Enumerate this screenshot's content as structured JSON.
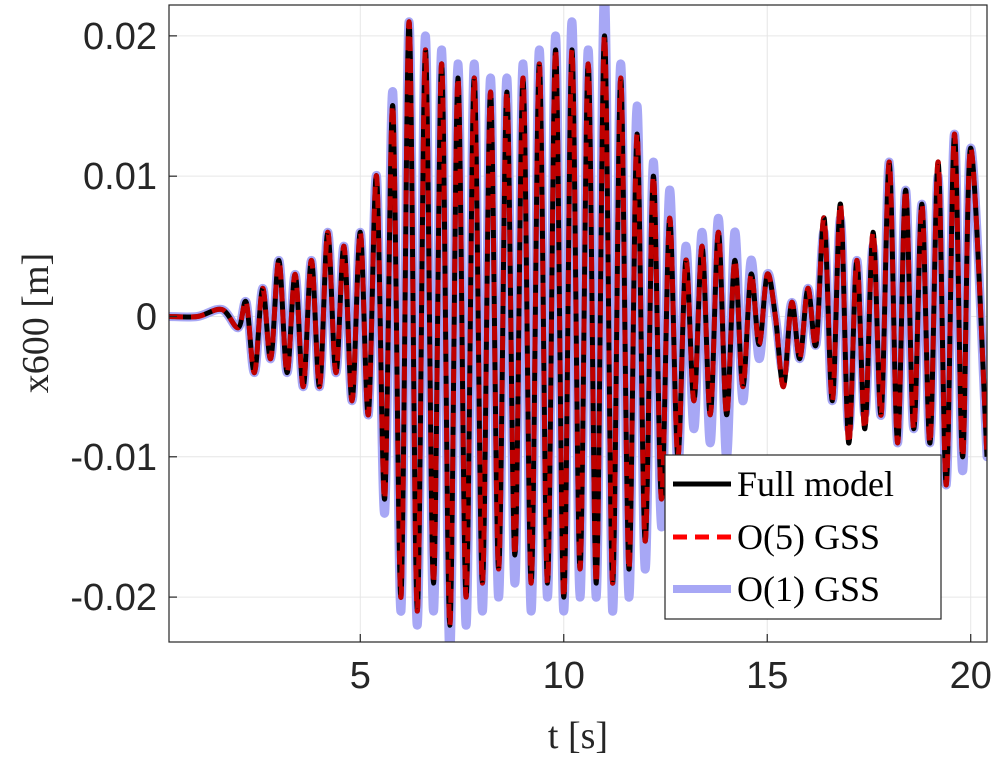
{
  "chart_data": {
    "type": "line",
    "xlabel": "t [s]",
    "ylabel": "x600 [m]",
    "xlim": [
      0.3,
      20.4
    ],
    "ylim": [
      -0.0232,
      0.0222
    ],
    "xticks": [
      {
        "value": 5,
        "label": "5"
      },
      {
        "value": 10,
        "label": "10"
      },
      {
        "value": 15,
        "label": "15"
      },
      {
        "value": 20,
        "label": "20"
      }
    ],
    "yticks": [
      {
        "value": 0.02,
        "label": "0.02"
      },
      {
        "value": 0.01,
        "label": "0.01"
      },
      {
        "value": 0,
        "label": "0"
      },
      {
        "value": -0.01,
        "label": "-0.01"
      },
      {
        "value": -0.02,
        "label": "-0.02"
      }
    ],
    "grid": true,
    "legend_position": "bottom-right",
    "series": [
      {
        "name": "O(1) GSS",
        "color": "#a7a7f5",
        "style": "solid-thick",
        "x": [
          0.3,
          1.0,
          1.6,
          2.0,
          2.2,
          2.4,
          2.6,
          2.8,
          3.0,
          3.2,
          3.4,
          3.6,
          3.8,
          4.0,
          4.2,
          4.4,
          4.6,
          4.8,
          5.0,
          5.2,
          5.4,
          5.6,
          5.8,
          6.0,
          6.2,
          6.4,
          6.6,
          6.8,
          7.0,
          7.2,
          7.4,
          7.6,
          7.8,
          8.0,
          8.2,
          8.4,
          8.6,
          8.8,
          9.0,
          9.2,
          9.4,
          9.6,
          9.8,
          10.0,
          10.2,
          10.4,
          10.6,
          10.8,
          11.0,
          11.2,
          11.4,
          11.6,
          11.8,
          12.0,
          12.2,
          12.4,
          12.6,
          12.8,
          13.0,
          13.2,
          13.4,
          13.6,
          13.8,
          14.0,
          14.2,
          14.4,
          14.6,
          14.8,
          15.0,
          15.2,
          15.4,
          15.6,
          15.8,
          16.0,
          16.2,
          16.4,
          16.6,
          16.8,
          17.0,
          17.2,
          17.4,
          17.6,
          17.8,
          18.0,
          18.2,
          18.4,
          18.6,
          18.8,
          19.0,
          19.2,
          19.4,
          19.6,
          19.8,
          20.0,
          20.4
        ],
        "y": [
          0,
          0,
          0.0005,
          -0.0008,
          0.001,
          -0.004,
          0.002,
          -0.003,
          0.004,
          -0.004,
          0.003,
          -0.005,
          0.004,
          -0.005,
          0.006,
          -0.004,
          0.005,
          -0.006,
          0.006,
          -0.007,
          0.01,
          -0.014,
          0.016,
          -0.021,
          0.021,
          -0.022,
          0.02,
          -0.021,
          0.019,
          -0.024,
          0.018,
          -0.022,
          0.018,
          -0.021,
          0.017,
          -0.02,
          0.017,
          -0.019,
          0.018,
          -0.021,
          0.019,
          -0.02,
          0.02,
          -0.021,
          0.021,
          -0.02,
          0.019,
          -0.02,
          0.023,
          -0.021,
          0.018,
          -0.02,
          0.015,
          -0.018,
          0.011,
          -0.015,
          0.009,
          -0.011,
          0.005,
          -0.008,
          0.006,
          -0.009,
          0.007,
          -0.01,
          0.006,
          -0.006,
          0.004,
          -0.003,
          0.003,
          0,
          -0.004,
          0.001,
          -0.003,
          0.002,
          -0.002,
          0.006,
          -0.006,
          0.007,
          -0.008,
          0.004,
          -0.007,
          0.005,
          -0.007,
          0.011,
          -0.009,
          0.009,
          -0.008,
          0.008,
          -0.009,
          0.01,
          -0.012,
          0.013,
          -0.011,
          0.012,
          -0.01
        ]
      },
      {
        "name": "Full model",
        "color": "#000000",
        "style": "solid",
        "x": [
          0.3,
          1.0,
          1.6,
          2.0,
          2.2,
          2.4,
          2.6,
          2.8,
          3.0,
          3.2,
          3.4,
          3.6,
          3.8,
          4.0,
          4.2,
          4.4,
          4.6,
          4.8,
          5.0,
          5.2,
          5.4,
          5.6,
          5.8,
          6.0,
          6.2,
          6.4,
          6.6,
          6.8,
          7.0,
          7.2,
          7.4,
          7.6,
          7.8,
          8.0,
          8.2,
          8.4,
          8.6,
          8.8,
          9.0,
          9.2,
          9.4,
          9.6,
          9.8,
          10.0,
          10.2,
          10.4,
          10.6,
          10.8,
          11.0,
          11.2,
          11.4,
          11.6,
          11.8,
          12.0,
          12.2,
          12.4,
          12.6,
          12.8,
          13.0,
          13.2,
          13.4,
          13.6,
          13.8,
          14.0,
          14.2,
          14.4,
          14.6,
          14.8,
          15.0,
          15.2,
          15.4,
          15.6,
          15.8,
          16.0,
          16.2,
          16.4,
          16.6,
          16.8,
          17.0,
          17.2,
          17.4,
          17.6,
          17.8,
          18.0,
          18.2,
          18.4,
          18.6,
          18.8,
          19.0,
          19.2,
          19.4,
          19.6,
          19.8,
          20.0,
          20.4
        ],
        "y": [
          0,
          0,
          0.0005,
          -0.0008,
          0.001,
          -0.004,
          0.002,
          -0.003,
          0.004,
          -0.004,
          0.003,
          -0.005,
          0.004,
          -0.005,
          0.006,
          -0.004,
          0.005,
          -0.006,
          0.006,
          -0.007,
          0.01,
          -0.013,
          0.015,
          -0.02,
          0.021,
          -0.021,
          0.019,
          -0.019,
          0.018,
          -0.022,
          0.017,
          -0.02,
          0.017,
          -0.019,
          0.016,
          -0.018,
          0.016,
          -0.017,
          0.017,
          -0.019,
          0.018,
          -0.019,
          0.019,
          -0.02,
          0.019,
          -0.018,
          0.018,
          -0.019,
          0.02,
          -0.019,
          0.017,
          -0.018,
          0.013,
          -0.016,
          0.01,
          -0.013,
          0.007,
          -0.01,
          0.004,
          -0.006,
          0.005,
          -0.007,
          0.006,
          -0.007,
          0.004,
          -0.005,
          0.003,
          -0.002,
          0.003,
          0,
          -0.005,
          0.001,
          -0.003,
          0.002,
          -0.002,
          0.007,
          -0.006,
          0.008,
          -0.009,
          0.004,
          -0.008,
          0.006,
          -0.007,
          0.011,
          -0.009,
          0.009,
          -0.008,
          0.008,
          -0.009,
          0.011,
          -0.012,
          0.013,
          -0.01,
          0.012,
          -0.01
        ]
      },
      {
        "name": "O(5) GSS",
        "color": "#ff0000",
        "style": "dashed",
        "x": [
          0.3,
          1.0,
          1.6,
          2.0,
          2.2,
          2.4,
          2.6,
          2.8,
          3.0,
          3.2,
          3.4,
          3.6,
          3.8,
          4.0,
          4.2,
          4.4,
          4.6,
          4.8,
          5.0,
          5.2,
          5.4,
          5.6,
          5.8,
          6.0,
          6.2,
          6.4,
          6.6,
          6.8,
          7.0,
          7.2,
          7.4,
          7.6,
          7.8,
          8.0,
          8.2,
          8.4,
          8.6,
          8.8,
          9.0,
          9.2,
          9.4,
          9.6,
          9.8,
          10.0,
          10.2,
          10.4,
          10.6,
          10.8,
          11.0,
          11.2,
          11.4,
          11.6,
          11.8,
          12.0,
          12.2,
          12.4,
          12.6,
          12.8,
          13.0,
          13.2,
          13.4,
          13.6,
          13.8,
          14.0,
          14.2,
          14.4,
          14.6,
          14.8,
          15.0,
          15.2,
          15.4,
          15.6,
          15.8,
          16.0,
          16.2,
          16.4,
          16.6,
          16.8,
          17.0,
          17.2,
          17.4,
          17.6,
          17.8,
          18.0,
          18.2,
          18.4,
          18.6,
          18.8,
          19.0,
          19.2,
          19.4,
          19.6,
          19.8,
          20.0,
          20.4
        ],
        "y": [
          0,
          0,
          0.0005,
          -0.0008,
          0.001,
          -0.004,
          0.002,
          -0.003,
          0.004,
          -0.004,
          0.003,
          -0.005,
          0.004,
          -0.005,
          0.006,
          -0.004,
          0.005,
          -0.006,
          0.006,
          -0.007,
          0.01,
          -0.013,
          0.015,
          -0.02,
          0.021,
          -0.021,
          0.019,
          -0.019,
          0.018,
          -0.022,
          0.017,
          -0.02,
          0.017,
          -0.019,
          0.016,
          -0.018,
          0.016,
          -0.017,
          0.017,
          -0.019,
          0.018,
          -0.019,
          0.019,
          -0.02,
          0.019,
          -0.018,
          0.018,
          -0.019,
          0.02,
          -0.019,
          0.017,
          -0.018,
          0.013,
          -0.016,
          0.01,
          -0.013,
          0.007,
          -0.01,
          0.004,
          -0.006,
          0.005,
          -0.007,
          0.006,
          -0.007,
          0.004,
          -0.005,
          0.003,
          -0.002,
          0.003,
          0,
          -0.005,
          0.001,
          -0.003,
          0.002,
          -0.002,
          0.007,
          -0.006,
          0.008,
          -0.009,
          0.004,
          -0.008,
          0.006,
          -0.007,
          0.011,
          -0.009,
          0.009,
          -0.008,
          0.008,
          -0.009,
          0.011,
          -0.012,
          0.013,
          -0.01,
          0.012,
          -0.01
        ]
      }
    ],
    "legend": [
      {
        "label": "Full model",
        "color": "#000000",
        "style": "solid"
      },
      {
        "label": "O(5) GSS",
        "color": "#ff0000",
        "style": "dashed"
      },
      {
        "label": "O(1) GSS",
        "color": "#a7a7f5",
        "style": "solid-thick"
      }
    ]
  }
}
